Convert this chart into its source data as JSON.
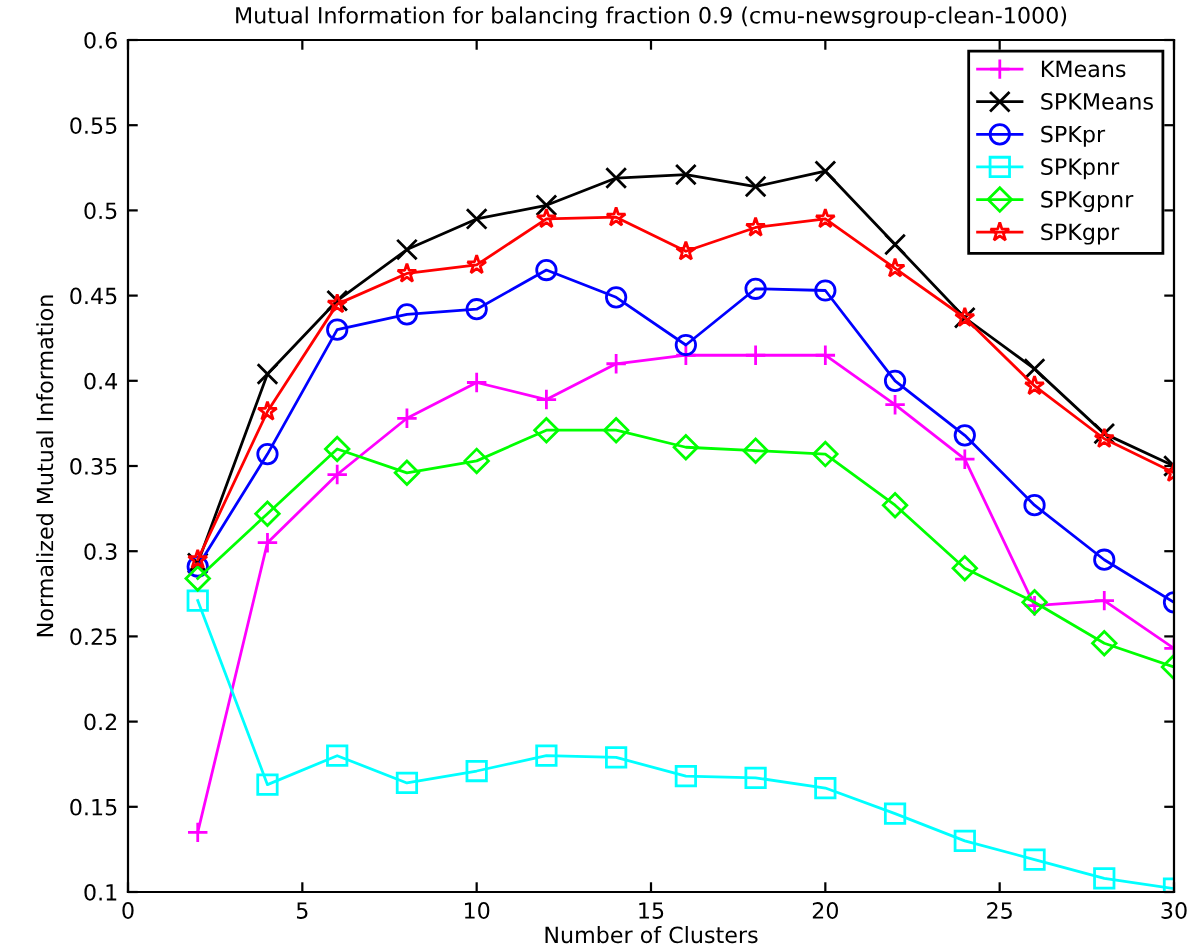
{
  "chart_data": {
    "type": "line",
    "title": "Mutual Information for balancing fraction 0.9 (cmu-newsgroup-clean-1000)",
    "xlabel": "Number of Clusters",
    "ylabel": "Normalized Mutual Information",
    "x": [
      2,
      4,
      6,
      8,
      10,
      12,
      14,
      16,
      18,
      20,
      22,
      24,
      26,
      28,
      30
    ],
    "series": [
      {
        "name": "KMeans",
        "color": "#ff00ff",
        "marker": "plus",
        "values": [
          0.135,
          0.305,
          0.345,
          0.378,
          0.399,
          0.389,
          0.41,
          0.415,
          0.415,
          0.415,
          0.386,
          0.354,
          0.268,
          0.271,
          0.243
        ]
      },
      {
        "name": "SPKMeans",
        "color": "#000000",
        "marker": "cross",
        "values": [
          0.293,
          0.404,
          0.447,
          0.477,
          0.495,
          0.503,
          0.519,
          0.521,
          0.514,
          0.523,
          0.48,
          0.437,
          0.407,
          0.369,
          0.35
        ]
      },
      {
        "name": "SPKpr",
        "color": "#0000ff",
        "marker": "circle",
        "values": [
          0.291,
          0.357,
          0.43,
          0.439,
          0.442,
          0.465,
          0.449,
          0.421,
          0.454,
          0.453,
          0.4,
          0.368,
          0.327,
          0.295,
          0.27
        ]
      },
      {
        "name": "SPKpnr",
        "color": "#00ffff",
        "marker": "square",
        "values": [
          0.271,
          0.163,
          0.18,
          0.164,
          0.171,
          0.18,
          0.179,
          0.168,
          0.167,
          0.161,
          0.146,
          0.13,
          0.119,
          0.108,
          0.102
        ]
      },
      {
        "name": "SPKgpnr",
        "color": "#00ff00",
        "marker": "diamond",
        "values": [
          0.284,
          0.322,
          0.36,
          0.346,
          0.353,
          0.371,
          0.371,
          0.361,
          0.359,
          0.357,
          0.327,
          0.29,
          0.27,
          0.246,
          0.232
        ]
      },
      {
        "name": "SPKgpr",
        "color": "#ff0000",
        "marker": "star",
        "values": [
          0.295,
          0.382,
          0.445,
          0.463,
          0.468,
          0.495,
          0.496,
          0.476,
          0.49,
          0.495,
          0.466,
          0.437,
          0.397,
          0.366,
          0.346
        ]
      }
    ],
    "xlim": [
      0,
      30
    ],
    "xticks": [
      0,
      5,
      10,
      15,
      20,
      25,
      30
    ],
    "ylim": [
      0.1,
      0.6
    ],
    "yticks": [
      0.1,
      0.15,
      0.2,
      0.25,
      0.3,
      0.35,
      0.4,
      0.45,
      0.5,
      0.55,
      0.6
    ],
    "grid": false,
    "legend": "top right",
    "line_style": "solid"
  }
}
